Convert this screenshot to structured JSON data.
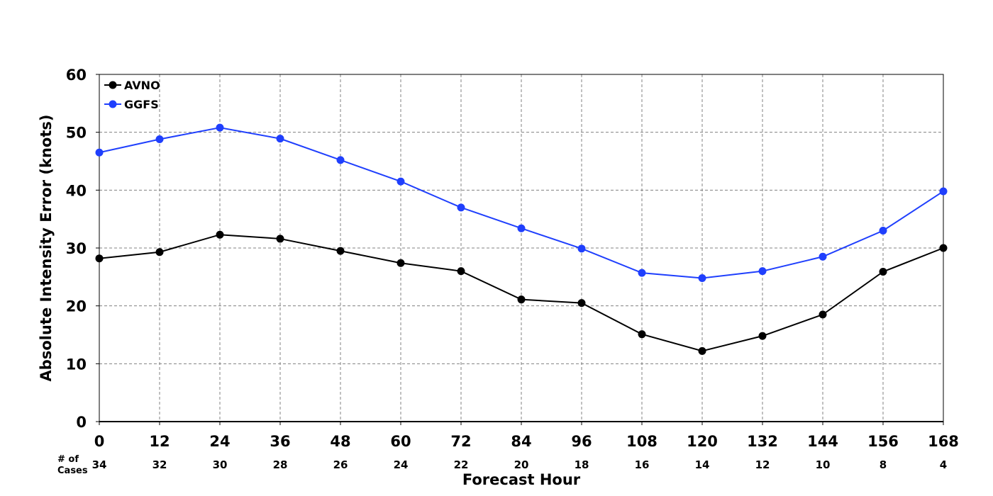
{
  "chart_data": {
    "type": "line",
    "xlabel": "Forecast Hour",
    "ylabel": "Absolute Intensity Error (knots)",
    "x": [
      0,
      12,
      24,
      36,
      48,
      60,
      72,
      84,
      96,
      108,
      120,
      132,
      144,
      156,
      168
    ],
    "cases_title_line1": "# of",
    "cases_title_line2": "Cases",
    "cases": [
      34,
      32,
      30,
      28,
      26,
      24,
      22,
      20,
      18,
      16,
      14,
      12,
      10,
      8,
      4
    ],
    "ylim": [
      0,
      60
    ],
    "yticks": [
      0,
      10,
      20,
      30,
      40,
      50,
      60
    ],
    "xlim": [
      0,
      168
    ],
    "grid": true,
    "legend_position": "top-left",
    "series": [
      {
        "name": "AVNO",
        "color": "#000000",
        "values": [
          28.2,
          29.3,
          32.3,
          31.6,
          29.5,
          27.4,
          26.0,
          21.1,
          20.5,
          15.1,
          12.2,
          14.8,
          18.5,
          25.9,
          30.0
        ]
      },
      {
        "name": "GGFS",
        "color": "#1f3ffd",
        "values": [
          46.5,
          48.8,
          50.8,
          48.9,
          45.2,
          41.5,
          37.0,
          33.4,
          29.9,
          25.7,
          24.8,
          26.0,
          28.5,
          33.0,
          39.8
        ]
      }
    ]
  }
}
